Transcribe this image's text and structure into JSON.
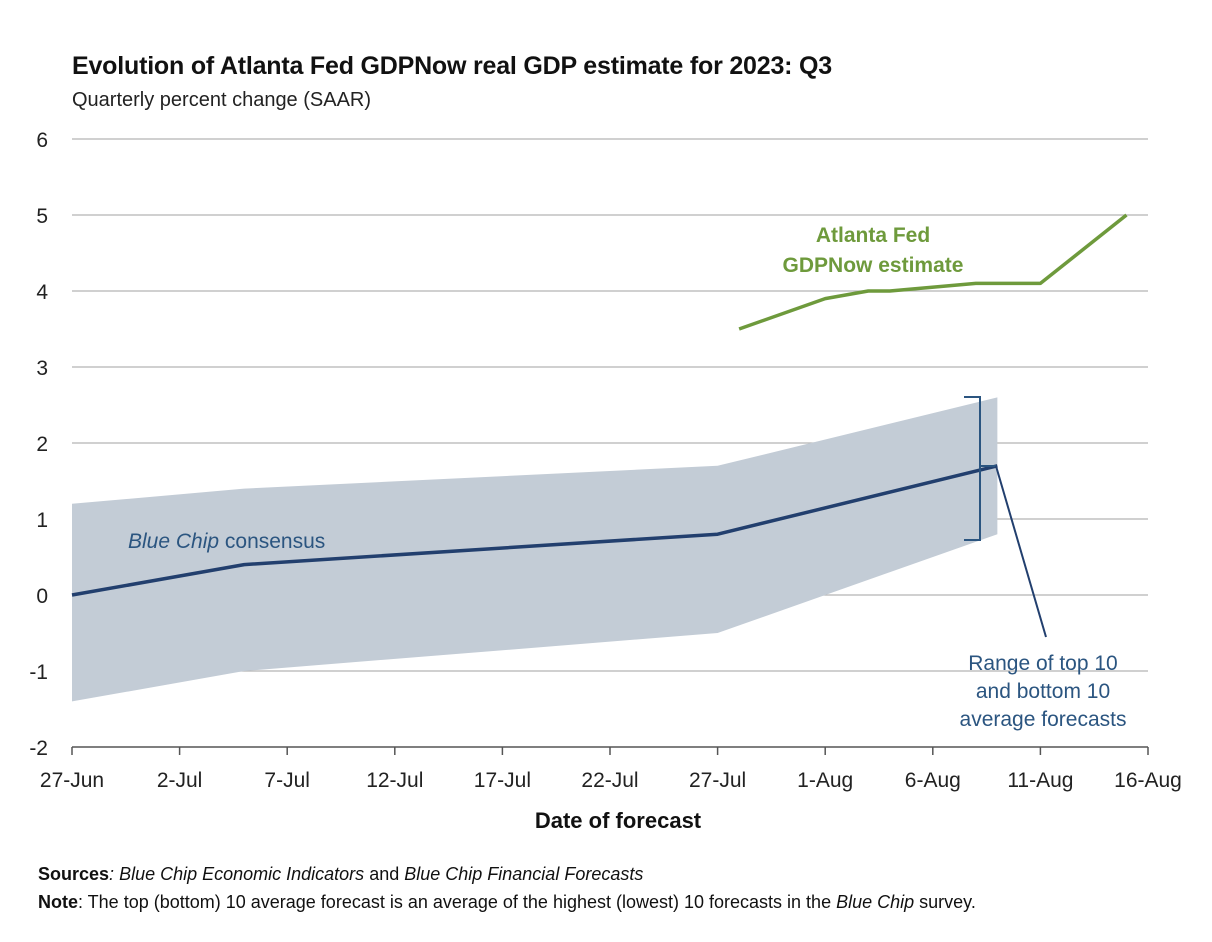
{
  "chart_data": {
    "type": "line",
    "title": "Evolution of Atlanta Fed GDPNow real GDP estimate for 2023: Q3",
    "subtitle": "Quarterly percent change (SAAR)",
    "xlabel": "Date of forecast",
    "ylabel": "",
    "x_tick_labels": [
      "27-Jun",
      "2-Jul",
      "7-Jul",
      "12-Jul",
      "17-Jul",
      "22-Jul",
      "27-Jul",
      "1-Aug",
      "6-Aug",
      "11-Aug",
      "16-Aug"
    ],
    "y_ticks": [
      -2,
      -1,
      0,
      1,
      2,
      3,
      4,
      5,
      6
    ],
    "ylim": [
      -2,
      6
    ],
    "xlim": [
      "2023-06-27",
      "2023-08-16"
    ],
    "grid": true,
    "series": [
      {
        "name": "Atlanta Fed GDPNow estimate",
        "color": "#6e9a3c",
        "points": [
          {
            "x": "2023-07-28",
            "y": 3.5
          },
          {
            "x": "2023-08-01",
            "y": 3.9
          },
          {
            "x": "2023-08-03",
            "y": 4.0
          },
          {
            "x": "2023-08-04",
            "y": 4.0
          },
          {
            "x": "2023-08-08",
            "y": 4.1
          },
          {
            "x": "2023-08-11",
            "y": 4.1
          },
          {
            "x": "2023-08-15",
            "y": 5.0
          }
        ]
      },
      {
        "name": "Blue Chip consensus",
        "color": "#223f6e",
        "points": [
          {
            "x": "2023-06-27",
            "y": 0.0
          },
          {
            "x": "2023-07-05",
            "y": 0.4
          },
          {
            "x": "2023-07-27",
            "y": 0.8
          },
          {
            "x": "2023-08-09",
            "y": 1.7
          }
        ]
      }
    ],
    "range_band": {
      "name": "Range of top 10 and bottom 10 average forecasts",
      "color": "#c3ccd6",
      "points": [
        {
          "x": "2023-06-27",
          "high": 1.2,
          "low": -1.4
        },
        {
          "x": "2023-07-05",
          "high": 1.4,
          "low": -1.0
        },
        {
          "x": "2023-07-27",
          "high": 1.7,
          "low": -0.5
        },
        {
          "x": "2023-08-09",
          "high": 2.6,
          "low": 0.8
        }
      ]
    },
    "annotations": {
      "gdpnow_line1": "Atlanta Fed",
      "gdpnow_line2": "GDPNow estimate",
      "bluechip_italic": "Blue Chip",
      "bluechip_rest": " consensus",
      "range_line1": "Range of top 10",
      "range_line2": "and bottom 10",
      "range_line3": "average forecasts"
    }
  },
  "footer": {
    "sources_label": "Sources",
    "sources_sep": ": ",
    "sources_italic1": "Blue Chip Economic Indicators",
    "sources_and": " and ",
    "sources_italic2": "Blue Chip Financial Forecasts",
    "note_label": "Note",
    "note_text1": ": The top (bottom) 10 average forecast is an average of the highest (lowest) 10 forecasts in the ",
    "note_italic": "Blue Chip",
    "note_text2": " survey."
  }
}
